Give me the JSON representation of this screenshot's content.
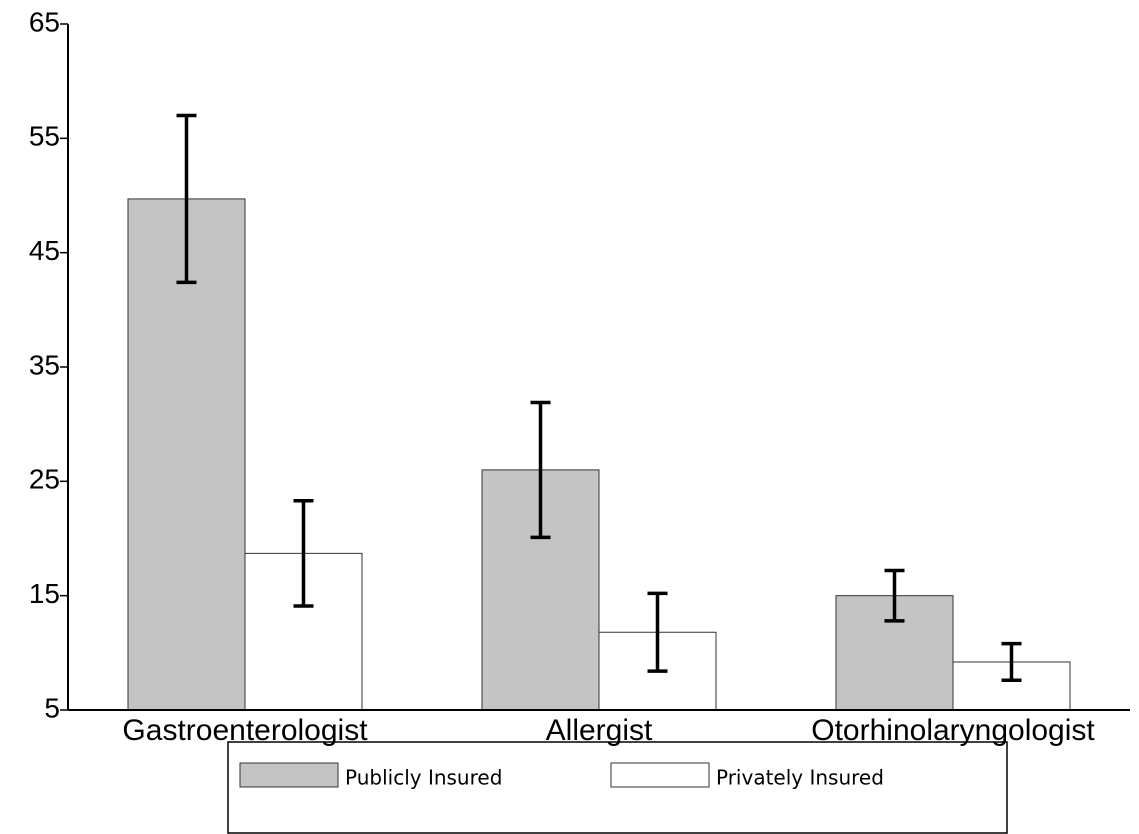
{
  "chart_data": {
    "type": "bar",
    "categories": [
      "Gastroenterologist",
      "Allergist",
      "Otorhinolaryngologist"
    ],
    "series": [
      {
        "name": "Publicly Insured",
        "color": "#c3c4c3",
        "values": [
          49.7,
          26.0,
          15.0
        ],
        "errors": [
          7.3,
          5.9,
          2.2
        ]
      },
      {
        "name": "Privately Insured",
        "color": "#ffffff",
        "values": [
          18.7,
          11.8,
          9.2
        ],
        "errors": [
          4.6,
          3.4,
          1.6
        ]
      }
    ],
    "ylim": [
      5,
      65
    ],
    "yticks": [
      5,
      15,
      25,
      35,
      45,
      55,
      65
    ]
  }
}
